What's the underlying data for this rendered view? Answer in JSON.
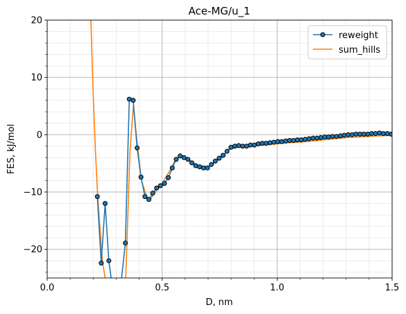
{
  "chart_data": {
    "type": "line",
    "title": "Ace-MG/u_1",
    "xlabel": "D, nm",
    "ylabel": "FES, kJ/mol",
    "xlim": [
      0.0,
      1.5
    ],
    "ylim": [
      -25,
      20
    ],
    "x_ticks": [
      "0.0",
      "0.5",
      "1.0",
      "1.5"
    ],
    "y_ticks": [
      "−20",
      "−10",
      "0",
      "10",
      "20"
    ],
    "grid": true,
    "minor_grid": true,
    "legend_position": "top-right",
    "legend": [
      "reweight",
      "sum_hills"
    ],
    "series": [
      {
        "name": "reweight",
        "color": "#1f77b4",
        "marker": "circle",
        "marker_edge": "#000000",
        "x": [
          0.218,
          0.235,
          0.252,
          0.268,
          0.285,
          0.302,
          0.318,
          0.34,
          0.357,
          0.374,
          0.391,
          0.408,
          0.425,
          0.442,
          0.459,
          0.476,
          0.493,
          0.51,
          0.527,
          0.544,
          0.561,
          0.578,
          0.595,
          0.612,
          0.629,
          0.646,
          0.663,
          0.68,
          0.697,
          0.714,
          0.731,
          0.748,
          0.765,
          0.782,
          0.799,
          0.816,
          0.833,
          0.85,
          0.867,
          0.884,
          0.901,
          0.918,
          0.935,
          0.952,
          0.969,
          0.986,
          1.003,
          1.02,
          1.037,
          1.054,
          1.071,
          1.088,
          1.105,
          1.122,
          1.139,
          1.156,
          1.173,
          1.19,
          1.207,
          1.224,
          1.241,
          1.258,
          1.275,
          1.292,
          1.309,
          1.326,
          1.343,
          1.36,
          1.377,
          1.394,
          1.411,
          1.428,
          1.445,
          1.462,
          1.479,
          1.496
        ],
        "y": [
          -10.8,
          -22.4,
          -12.0,
          -22.0,
          -27,
          -27,
          -27,
          -18.9,
          6.2,
          6.0,
          -2.3,
          -7.4,
          -10.8,
          -11.3,
          -10.2,
          -9.3,
          -8.9,
          -8.5,
          -7.5,
          -5.8,
          -4.3,
          -3.7,
          -4.0,
          -4.3,
          -4.9,
          -5.4,
          -5.6,
          -5.8,
          -5.8,
          -5.2,
          -4.6,
          -4.1,
          -3.6,
          -2.9,
          -2.2,
          -2.0,
          -1.9,
          -2.0,
          -2.0,
          -1.8,
          -1.8,
          -1.6,
          -1.5,
          -1.5,
          -1.4,
          -1.3,
          -1.2,
          -1.2,
          -1.1,
          -1.0,
          -1.0,
          -0.9,
          -0.9,
          -0.8,
          -0.7,
          -0.6,
          -0.6,
          -0.5,
          -0.4,
          -0.4,
          -0.3,
          -0.3,
          -0.2,
          -0.1,
          0.0,
          0.0,
          0.1,
          0.1,
          0.1,
          0.1,
          0.2,
          0.2,
          0.3,
          0.2,
          0.2,
          0.1
        ]
      },
      {
        "name": "sum_hills",
        "color": "#ff7f0e",
        "x": [
          0.19,
          0.2,
          0.21,
          0.22,
          0.24,
          0.26,
          0.28,
          0.3,
          0.32,
          0.34,
          0.36,
          0.375,
          0.39,
          0.41,
          0.43,
          0.445,
          0.47,
          0.5,
          0.53,
          0.56,
          0.59,
          0.62,
          0.65,
          0.68,
          0.7,
          0.73,
          0.76,
          0.79,
          0.82,
          0.85,
          0.88,
          0.91,
          0.94,
          0.97,
          1.0,
          1.05,
          1.1,
          1.15,
          1.2,
          1.25,
          1.3,
          1.35,
          1.4,
          1.45,
          1.5
        ],
        "y": [
          20,
          7,
          -3,
          -11,
          -22,
          -27,
          -27,
          -27,
          -27,
          -27,
          -3,
          5.1,
          -1,
          -8,
          -10.5,
          -11.5,
          -10.0,
          -8.5,
          -6.5,
          -4.2,
          -3.8,
          -4.5,
          -5.3,
          -5.9,
          -5.7,
          -4.8,
          -3.8,
          -2.6,
          -2.2,
          -2.2,
          -2.1,
          -1.9,
          -1.8,
          -1.7,
          -1.6,
          -1.4,
          -1.3,
          -1.1,
          -0.9,
          -0.7,
          -0.5,
          -0.4,
          -0.3,
          -0.2,
          -0.1
        ]
      }
    ]
  }
}
